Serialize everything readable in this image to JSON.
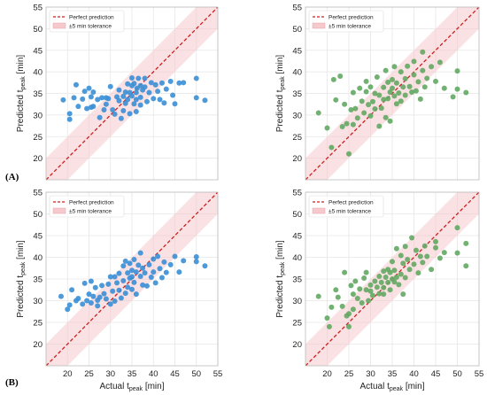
{
  "figure": {
    "labels": [
      {
        "text": "(A)"
      },
      {
        "text": "(B)"
      }
    ]
  },
  "chart_data": [
    {
      "type": "scatter",
      "panel": "A",
      "position": "top-left",
      "title": "",
      "xlabel": "",
      "ylabel": {
        "prefix": "Predicted t",
        "sub": "peak",
        "suffix": " [min]"
      },
      "xlim": [
        15,
        55
      ],
      "ylim": [
        15,
        55
      ],
      "yticks": [
        20,
        25,
        30,
        35,
        40,
        45,
        50,
        55
      ],
      "xticks": [],
      "grid": true,
      "legend": {
        "placement": "top-left",
        "entries": [
          {
            "label": "Perfect prediction",
            "kind": "line",
            "color": "#cc1f1f"
          },
          {
            "label": "±5 min tolerance",
            "kind": "band",
            "color": "#f6c9cc"
          }
        ]
      },
      "point_color": "#3a8fd6",
      "points": [
        [
          19,
          33.5
        ],
        [
          20.5,
          29
        ],
        [
          20.5,
          30.3
        ],
        [
          21.5,
          34
        ],
        [
          22,
          37
        ],
        [
          22.5,
          32
        ],
        [
          23.5,
          33.7
        ],
        [
          24,
          35.5
        ],
        [
          24.5,
          31.5
        ],
        [
          25,
          36.2
        ],
        [
          25.5,
          34.2
        ],
        [
          25.5,
          31.8
        ],
        [
          26,
          32
        ],
        [
          26,
          35.3
        ],
        [
          27,
          33.6
        ],
        [
          27.5,
          29.4
        ],
        [
          28,
          34
        ],
        [
          28.5,
          31.2
        ],
        [
          29,
          34
        ],
        [
          29,
          32.5
        ],
        [
          29.5,
          33.8
        ],
        [
          30,
          36.6
        ],
        [
          30.5,
          31.2
        ],
        [
          31,
          30.2
        ],
        [
          31.5,
          34.2
        ],
        [
          32,
          35.8
        ],
        [
          32,
          33.3
        ],
        [
          32.5,
          29.2
        ],
        [
          33,
          31
        ],
        [
          33,
          34.3
        ],
        [
          33.5,
          35.3
        ],
        [
          33.5,
          32.7
        ],
        [
          34,
          37.2
        ],
        [
          34,
          33.6
        ],
        [
          34.5,
          35.2
        ],
        [
          34.5,
          30.3
        ],
        [
          35,
          38.6
        ],
        [
          35,
          36.8
        ],
        [
          35,
          34.4
        ],
        [
          35.5,
          32.6
        ],
        [
          35.5,
          37.3
        ],
        [
          36,
          35.2
        ],
        [
          36,
          33.6
        ],
        [
          36,
          30.8
        ],
        [
          36.5,
          38.5
        ],
        [
          37,
          36.8
        ],
        [
          37,
          34.1
        ],
        [
          37,
          32.3
        ],
        [
          37.5,
          35.8
        ],
        [
          38,
          38.5
        ],
        [
          38,
          36.5
        ],
        [
          38.5,
          33.1
        ],
        [
          39,
          35.2
        ],
        [
          39.5,
          37.5
        ],
        [
          40,
          33.8
        ],
        [
          40.5,
          37
        ],
        [
          41,
          35.5
        ],
        [
          41.5,
          33.6
        ],
        [
          42,
          37.4
        ],
        [
          42.5,
          32.8
        ],
        [
          43,
          36
        ],
        [
          44,
          37.8
        ],
        [
          44.5,
          34.6
        ],
        [
          45,
          32.6
        ],
        [
          46,
          37.4
        ],
        [
          47,
          37.5
        ],
        [
          50,
          38.5
        ],
        [
          52,
          33.4
        ],
        [
          50,
          34
        ],
        [
          36.2,
          36.2
        ]
      ]
    },
    {
      "type": "scatter",
      "panel": "A",
      "position": "top-right",
      "title": "",
      "xlabel": "",
      "ylabel": {
        "prefix": "Predicted t",
        "sub": "peak",
        "suffix": " [min]"
      },
      "xlim": [
        15,
        55
      ],
      "ylim": [
        15,
        55
      ],
      "yticks": [
        20,
        25,
        30,
        35,
        40,
        45,
        50,
        55
      ],
      "xticks": [],
      "grid": true,
      "legend": {
        "placement": "top-left",
        "entries": [
          {
            "label": "Perfect prediction",
            "kind": "line",
            "color": "#cc1f1f"
          },
          {
            "label": "±5 min tolerance",
            "kind": "band",
            "color": "#f6c9cc"
          }
        ]
      },
      "point_color": "#62a862",
      "points": [
        [
          18,
          30.5
        ],
        [
          20,
          27
        ],
        [
          21,
          22.5
        ],
        [
          21.5,
          38.2
        ],
        [
          22,
          33.5
        ],
        [
          23,
          39
        ],
        [
          23.5,
          27.3
        ],
        [
          24,
          32.5
        ],
        [
          24.5,
          28
        ],
        [
          25,
          21
        ],
        [
          25.5,
          31.2
        ],
        [
          26,
          35.2
        ],
        [
          26,
          27.8
        ],
        [
          26.5,
          31.5
        ],
        [
          27,
          29.3
        ],
        [
          27.5,
          36.2
        ],
        [
          28,
          33.2
        ],
        [
          28.5,
          30.5
        ],
        [
          29,
          35.4
        ],
        [
          29.5,
          32.4
        ],
        [
          30,
          29.8
        ],
        [
          30,
          36.5
        ],
        [
          30.5,
          33.1
        ],
        [
          31,
          31.4
        ],
        [
          31.5,
          38.8
        ],
        [
          32,
          34.6
        ],
        [
          32,
          27.4
        ],
        [
          32.5,
          31.6
        ],
        [
          33,
          36.4
        ],
        [
          33,
          33.6
        ],
        [
          33.5,
          40.3
        ],
        [
          33.5,
          29.4
        ],
        [
          34,
          37.6
        ],
        [
          34,
          33.8
        ],
        [
          34.5,
          35.3
        ],
        [
          34.5,
          28.6
        ],
        [
          35,
          38.2
        ],
        [
          35,
          36.2
        ],
        [
          35.5,
          34.4
        ],
        [
          35.5,
          41.2
        ],
        [
          36,
          32.6
        ],
        [
          36,
          37.4
        ],
        [
          36.5,
          35.1
        ],
        [
          37,
          40
        ],
        [
          37,
          33.2
        ],
        [
          37.5,
          36.5
        ],
        [
          38,
          38.4
        ],
        [
          38,
          34.6
        ],
        [
          38.5,
          41.3
        ],
        [
          39,
          36.6
        ],
        [
          39.5,
          35.3
        ],
        [
          40,
          42.4
        ],
        [
          40,
          39.3
        ],
        [
          40.5,
          35.6
        ],
        [
          41,
          37.7
        ],
        [
          41.5,
          33.7
        ],
        [
          42,
          44.6
        ],
        [
          42,
          40.3
        ],
        [
          42.5,
          36.5
        ],
        [
          43,
          38.5
        ],
        [
          44,
          41.2
        ],
        [
          45,
          37.8
        ],
        [
          46,
          42.2
        ],
        [
          47,
          36.2
        ],
        [
          49,
          34.2
        ],
        [
          50,
          40.2
        ],
        [
          50,
          36
        ],
        [
          52,
          35.2
        ],
        [
          31,
          35
        ],
        [
          29,
          37.8
        ]
      ]
    },
    {
      "type": "scatter",
      "panel": "B",
      "position": "bottom-left",
      "title": "",
      "xlabel": {
        "prefix": "Actual t",
        "sub": "peak",
        "suffix": " [min]"
      },
      "ylabel": {
        "prefix": "Predicted t",
        "sub": "peak",
        "suffix": " [min]"
      },
      "xlim": [
        15,
        55
      ],
      "ylim": [
        15,
        55
      ],
      "xticks": [
        20,
        25,
        30,
        35,
        40,
        45,
        50,
        55
      ],
      "yticks": [
        20,
        25,
        30,
        35,
        40,
        45,
        50,
        55
      ],
      "grid": true,
      "legend": {
        "placement": "top-left",
        "entries": [
          {
            "label": "Perfect prediction",
            "kind": "line",
            "color": "#cc1f1f"
          },
          {
            "label": "±5 min tolerance",
            "kind": "band",
            "color": "#f6c9cc"
          }
        ]
      },
      "point_color": "#3a8fd6",
      "points": [
        [
          18.5,
          31
        ],
        [
          20,
          28
        ],
        [
          20.5,
          29
        ],
        [
          21,
          32.5
        ],
        [
          22,
          30
        ],
        [
          22.5,
          30.5
        ],
        [
          23.5,
          29.2
        ],
        [
          24,
          34
        ],
        [
          24.5,
          30
        ],
        [
          25,
          31.5
        ],
        [
          25.5,
          29.5
        ],
        [
          25.5,
          34.5
        ],
        [
          26,
          31
        ],
        [
          26.5,
          33
        ],
        [
          27,
          28.8
        ],
        [
          27.5,
          30.8
        ],
        [
          28,
          33.5
        ],
        [
          28.5,
          31.6
        ],
        [
          29,
          30.4
        ],
        [
          29.5,
          33.8
        ],
        [
          30,
          35.5
        ],
        [
          30.5,
          32.2
        ],
        [
          31,
          29.9
        ],
        [
          31.5,
          34.1
        ],
        [
          32,
          36.3
        ],
        [
          32,
          32.4
        ],
        [
          32.5,
          30.6
        ],
        [
          33,
          38
        ],
        [
          33,
          34.6
        ],
        [
          33.5,
          31.7
        ],
        [
          34,
          36.4
        ],
        [
          34,
          33.1
        ],
        [
          34.5,
          35.2
        ],
        [
          34.5,
          38.6
        ],
        [
          35,
          37
        ],
        [
          35,
          32.6
        ],
        [
          35,
          35.5
        ],
        [
          35.5,
          39.5
        ],
        [
          35.5,
          34.2
        ],
        [
          36,
          36.6
        ],
        [
          36,
          31.5
        ],
        [
          36.5,
          38.2
        ],
        [
          37,
          35.6
        ],
        [
          37,
          41
        ],
        [
          37.5,
          33.6
        ],
        [
          37.5,
          37.5
        ],
        [
          38,
          36.4
        ],
        [
          38.5,
          33.4
        ],
        [
          39,
          38.3
        ],
        [
          39.5,
          35.4
        ],
        [
          40,
          39.6
        ],
        [
          40,
          36.6
        ],
        [
          40.5,
          34.1
        ],
        [
          41,
          40.2
        ],
        [
          41.5,
          37.4
        ],
        [
          42,
          35.3
        ],
        [
          42.5,
          38.9
        ],
        [
          43,
          36.5
        ],
        [
          44,
          38.3
        ],
        [
          45,
          40.2
        ],
        [
          46,
          36.6
        ],
        [
          47,
          39.2
        ],
        [
          50,
          40.1
        ],
        [
          50,
          39
        ],
        [
          52,
          38
        ],
        [
          30,
          29.2
        ],
        [
          27,
          30.1
        ],
        [
          33.5,
          39.1
        ],
        [
          31,
          35.5
        ]
      ]
    },
    {
      "type": "scatter",
      "panel": "B",
      "position": "bottom-right",
      "title": "",
      "xlabel": {
        "prefix": "Actual t",
        "sub": "peak",
        "suffix": " [min]"
      },
      "ylabel": {
        "prefix": "Predicted t",
        "sub": "peak",
        "suffix": " [min]"
      },
      "xlim": [
        15,
        55
      ],
      "ylim": [
        15,
        55
      ],
      "xticks": [
        20,
        25,
        30,
        35,
        40,
        45,
        50,
        55
      ],
      "yticks": [
        20,
        25,
        30,
        35,
        40,
        45,
        50,
        55
      ],
      "grid": true,
      "legend": {
        "placement": "top-left",
        "entries": [
          {
            "label": "Perfect prediction",
            "kind": "line",
            "color": "#cc1f1f"
          },
          {
            "label": "±5 min tolerance",
            "kind": "band",
            "color": "#f6c9cc"
          }
        ]
      },
      "point_color": "#62a862",
      "points": [
        [
          18,
          31
        ],
        [
          20,
          26
        ],
        [
          20.5,
          24
        ],
        [
          21,
          28.5
        ],
        [
          22,
          32.5
        ],
        [
          22.5,
          30.8
        ],
        [
          23.5,
          28.7
        ],
        [
          24,
          36.5
        ],
        [
          24.5,
          26.5
        ],
        [
          25,
          24
        ],
        [
          25.5,
          33.5
        ],
        [
          26,
          28
        ],
        [
          26,
          31.5
        ],
        [
          26.5,
          34.5
        ],
        [
          27,
          30.5
        ],
        [
          27.5,
          32.7
        ],
        [
          28,
          29.5
        ],
        [
          28.5,
          35.2
        ],
        [
          29,
          32.5
        ],
        [
          29.5,
          30
        ],
        [
          30,
          33.6
        ],
        [
          30.5,
          31.2
        ],
        [
          31,
          34.5
        ],
        [
          31.5,
          33.1
        ],
        [
          32,
          35.6
        ],
        [
          32,
          31.6
        ],
        [
          32.5,
          34.2
        ],
        [
          33,
          36.8
        ],
        [
          33,
          33
        ],
        [
          33.5,
          35.4
        ],
        [
          34,
          37.2
        ],
        [
          34,
          34.2
        ],
        [
          34.5,
          36.5
        ],
        [
          34.5,
          32.5
        ],
        [
          35,
          35
        ],
        [
          35,
          39
        ],
        [
          35.5,
          34.3
        ],
        [
          35.5,
          37
        ],
        [
          36,
          35.4
        ],
        [
          36,
          42
        ],
        [
          36.5,
          33.7
        ],
        [
          37,
          40.4
        ],
        [
          37,
          36.1
        ],
        [
          37.5,
          38.6
        ],
        [
          38,
          42.5
        ],
        [
          38,
          35.3
        ],
        [
          38.5,
          39.5
        ],
        [
          39,
          37.2
        ],
        [
          39.5,
          44.5
        ],
        [
          40,
          38.4
        ],
        [
          40.5,
          41.6
        ],
        [
          41,
          36.4
        ],
        [
          41.5,
          40.2
        ],
        [
          42,
          38.8
        ],
        [
          42.5,
          42.6
        ],
        [
          43,
          40.2
        ],
        [
          44,
          37.2
        ],
        [
          45,
          42.2
        ],
        [
          45,
          43.6
        ],
        [
          46,
          39.8
        ],
        [
          47,
          41.1
        ],
        [
          50,
          46.8
        ],
        [
          50,
          41
        ],
        [
          52,
          38
        ],
        [
          52,
          43.2
        ],
        [
          25,
          27
        ],
        [
          29,
          36.5
        ],
        [
          33,
          31.5
        ],
        [
          30,
          32.2
        ],
        [
          37.5,
          31.5
        ]
      ]
    }
  ]
}
